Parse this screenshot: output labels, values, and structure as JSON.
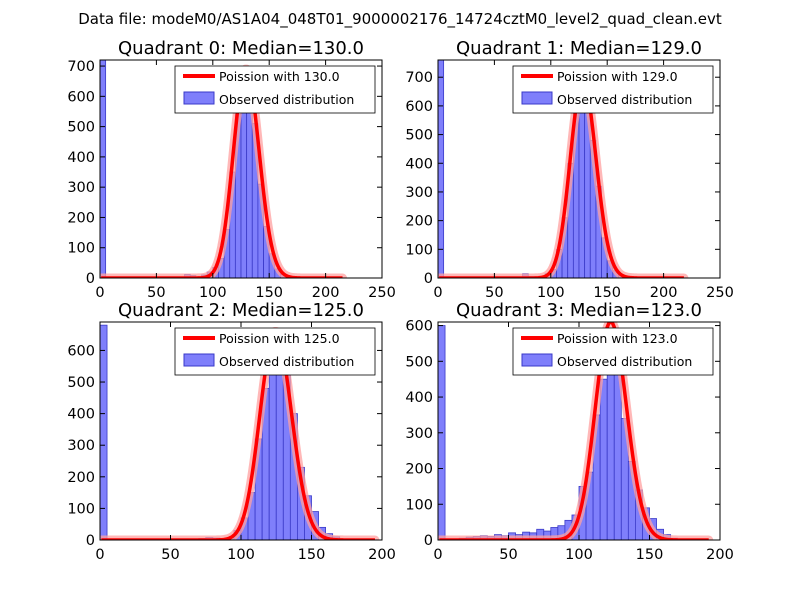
{
  "figure_title": "Data file: modeM0/AS1A04_048T01_9000002176_14724cztM0_level2_quad_clean.evt",
  "colors": {
    "bar_fill": "#7f7ffb",
    "bar_edge": "#3a3ac8",
    "curve": "#ff0000",
    "curve_glow": "#ffa0a0"
  },
  "chart_data": [
    {
      "type": "bar",
      "title": "Quadrant 0: Median=130.0",
      "xlim": [
        0,
        250
      ],
      "ylim": [
        0,
        720
      ],
      "xticks": [
        0,
        50,
        100,
        150,
        200,
        250
      ],
      "yticks": [
        0,
        100,
        200,
        300,
        400,
        500,
        600,
        700
      ],
      "bin_width": 5,
      "bins": [
        {
          "x": 0,
          "y": 720
        },
        {
          "x": 75,
          "y": 12
        },
        {
          "x": 80,
          "y": 8
        },
        {
          "x": 85,
          "y": 3
        },
        {
          "x": 90,
          "y": 10
        },
        {
          "x": 95,
          "y": 20
        },
        {
          "x": 100,
          "y": 35
        },
        {
          "x": 105,
          "y": 65
        },
        {
          "x": 110,
          "y": 160
        },
        {
          "x": 115,
          "y": 350
        },
        {
          "x": 120,
          "y": 540
        },
        {
          "x": 125,
          "y": 670
        },
        {
          "x": 130,
          "y": 630
        },
        {
          "x": 135,
          "y": 510
        },
        {
          "x": 140,
          "y": 310
        },
        {
          "x": 145,
          "y": 170
        },
        {
          "x": 150,
          "y": 80
        },
        {
          "x": 155,
          "y": 30
        },
        {
          "x": 160,
          "y": 12
        },
        {
          "x": 165,
          "y": 4
        }
      ],
      "poisson": {
        "lambda": 130.0,
        "peak": 690,
        "x_end": 215
      },
      "legend": [
        "Poission with 130.0",
        "Observed distribution"
      ]
    },
    {
      "type": "bar",
      "title": "Quadrant 1: Median=129.0",
      "xlim": [
        0,
        250
      ],
      "ylim": [
        0,
        760
      ],
      "xticks": [
        0,
        50,
        100,
        150,
        200,
        250
      ],
      "yticks": [
        0,
        100,
        200,
        300,
        400,
        500,
        600,
        700
      ],
      "bin_width": 5,
      "bins": [
        {
          "x": 0,
          "y": 760
        },
        {
          "x": 75,
          "y": 15
        },
        {
          "x": 80,
          "y": 5
        },
        {
          "x": 85,
          "y": 3
        },
        {
          "x": 90,
          "y": 6
        },
        {
          "x": 95,
          "y": 15
        },
        {
          "x": 100,
          "y": 30
        },
        {
          "x": 105,
          "y": 100
        },
        {
          "x": 110,
          "y": 210
        },
        {
          "x": 115,
          "y": 400
        },
        {
          "x": 120,
          "y": 600
        },
        {
          "x": 125,
          "y": 720
        },
        {
          "x": 130,
          "y": 690
        },
        {
          "x": 135,
          "y": 480
        },
        {
          "x": 140,
          "y": 320
        },
        {
          "x": 145,
          "y": 140
        },
        {
          "x": 150,
          "y": 60
        },
        {
          "x": 155,
          "y": 25
        },
        {
          "x": 160,
          "y": 10
        },
        {
          "x": 165,
          "y": 3
        }
      ],
      "poisson": {
        "lambda": 129.0,
        "peak": 690,
        "x_end": 218
      },
      "legend": [
        "Poission with 129.0",
        "Observed distribution"
      ]
    },
    {
      "type": "bar",
      "title": "Quadrant 2: Median=125.0",
      "xlim": [
        0,
        200
      ],
      "ylim": [
        0,
        690
      ],
      "xticks": [
        0,
        50,
        100,
        150,
        200
      ],
      "yticks": [
        0,
        100,
        200,
        300,
        400,
        500,
        600
      ],
      "bin_width": 5,
      "bins": [
        {
          "x": 0,
          "y": 680
        },
        {
          "x": 70,
          "y": 5
        },
        {
          "x": 75,
          "y": 8
        },
        {
          "x": 80,
          "y": 6
        },
        {
          "x": 85,
          "y": 5
        },
        {
          "x": 90,
          "y": 8
        },
        {
          "x": 95,
          "y": 30
        },
        {
          "x": 100,
          "y": 70
        },
        {
          "x": 105,
          "y": 150
        },
        {
          "x": 110,
          "y": 320
        },
        {
          "x": 115,
          "y": 480
        },
        {
          "x": 120,
          "y": 590
        },
        {
          "x": 125,
          "y": 640
        },
        {
          "x": 130,
          "y": 530
        },
        {
          "x": 135,
          "y": 400
        },
        {
          "x": 140,
          "y": 230
        },
        {
          "x": 145,
          "y": 140
        },
        {
          "x": 150,
          "y": 90
        },
        {
          "x": 155,
          "y": 40
        },
        {
          "x": 160,
          "y": 20
        },
        {
          "x": 165,
          "y": 10
        },
        {
          "x": 170,
          "y": 3
        }
      ],
      "poisson": {
        "lambda": 125.0,
        "peak": 660,
        "x_end": 195
      },
      "legend": [
        "Poission with 125.0",
        "Observed distribution"
      ]
    },
    {
      "type": "bar",
      "title": "Quadrant 3: Median=123.0",
      "xlim": [
        0,
        200
      ],
      "ylim": [
        0,
        610
      ],
      "xticks": [
        0,
        50,
        100,
        150,
        200
      ],
      "yticks": [
        0,
        100,
        200,
        300,
        400,
        500,
        600
      ],
      "bin_width": 5,
      "bins": [
        {
          "x": 0,
          "y": 600
        },
        {
          "x": 15,
          "y": 5
        },
        {
          "x": 20,
          "y": 8
        },
        {
          "x": 25,
          "y": 10
        },
        {
          "x": 30,
          "y": 12
        },
        {
          "x": 35,
          "y": 10
        },
        {
          "x": 40,
          "y": 15
        },
        {
          "x": 45,
          "y": 12
        },
        {
          "x": 50,
          "y": 20
        },
        {
          "x": 55,
          "y": 15
        },
        {
          "x": 60,
          "y": 22
        },
        {
          "x": 65,
          "y": 20
        },
        {
          "x": 70,
          "y": 30
        },
        {
          "x": 75,
          "y": 25
        },
        {
          "x": 80,
          "y": 35
        },
        {
          "x": 85,
          "y": 40
        },
        {
          "x": 90,
          "y": 55
        },
        {
          "x": 95,
          "y": 70
        },
        {
          "x": 100,
          "y": 150
        },
        {
          "x": 105,
          "y": 190
        },
        {
          "x": 110,
          "y": 350
        },
        {
          "x": 115,
          "y": 450
        },
        {
          "x": 120,
          "y": 510
        },
        {
          "x": 125,
          "y": 480
        },
        {
          "x": 130,
          "y": 340
        },
        {
          "x": 135,
          "y": 220
        },
        {
          "x": 140,
          "y": 140
        },
        {
          "x": 145,
          "y": 90
        },
        {
          "x": 150,
          "y": 60
        },
        {
          "x": 155,
          "y": 30
        },
        {
          "x": 160,
          "y": 15
        },
        {
          "x": 165,
          "y": 5
        }
      ],
      "poisson": {
        "lambda": 123.0,
        "peak": 610,
        "x_end": 192
      },
      "legend": [
        "Poission with 123.0",
        "Observed distribution"
      ]
    }
  ]
}
